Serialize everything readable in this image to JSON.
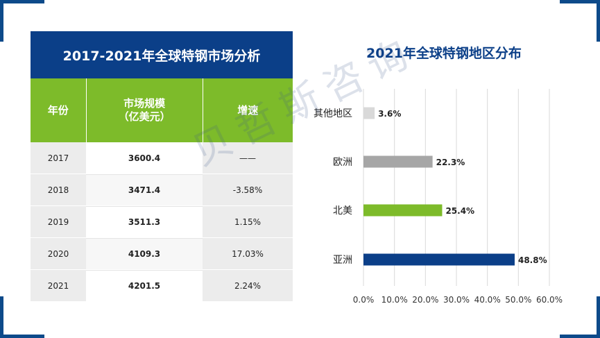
{
  "table": {
    "title": "2017-2021年全球特钢市场分析",
    "headers": [
      "年份",
      "市场规模\n（亿美元）",
      "增速"
    ],
    "rows": [
      {
        "year": "2017",
        "size": "3600.4",
        "growth": "——"
      },
      {
        "year": "2018",
        "size": "3471.4",
        "growth": "-3.58%"
      },
      {
        "year": "2019",
        "size": "3511.3",
        "growth": "1.15%"
      },
      {
        "year": "2020",
        "size": "4109.3",
        "growth": "17.03%"
      },
      {
        "year": "2021",
        "size": "4201.5",
        "growth": "2.24%"
      }
    ],
    "colors": {
      "title_bg": "#0b3f88",
      "header_bg": "#7dbb2a"
    }
  },
  "watermark": "贝哲斯咨询",
  "chart_data": {
    "type": "bar",
    "orientation": "horizontal",
    "title": "2021年全球特钢地区分布",
    "categories": [
      "其他地区",
      "欧洲",
      "北美",
      "亚洲"
    ],
    "values": [
      3.6,
      22.3,
      25.4,
      48.8
    ],
    "value_labels": [
      "3.6%",
      "22.3%",
      "25.4%",
      "48.8%"
    ],
    "colors": [
      "#d9d9d9",
      "#a6a6a6",
      "#7dbb2a",
      "#0b3f88"
    ],
    "xlim": [
      0,
      60
    ],
    "x_ticks": [
      "0.0%",
      "10.0%",
      "20.0%",
      "30.0%",
      "40.0%",
      "50.0%",
      "60.0%"
    ],
    "grid": true
  }
}
